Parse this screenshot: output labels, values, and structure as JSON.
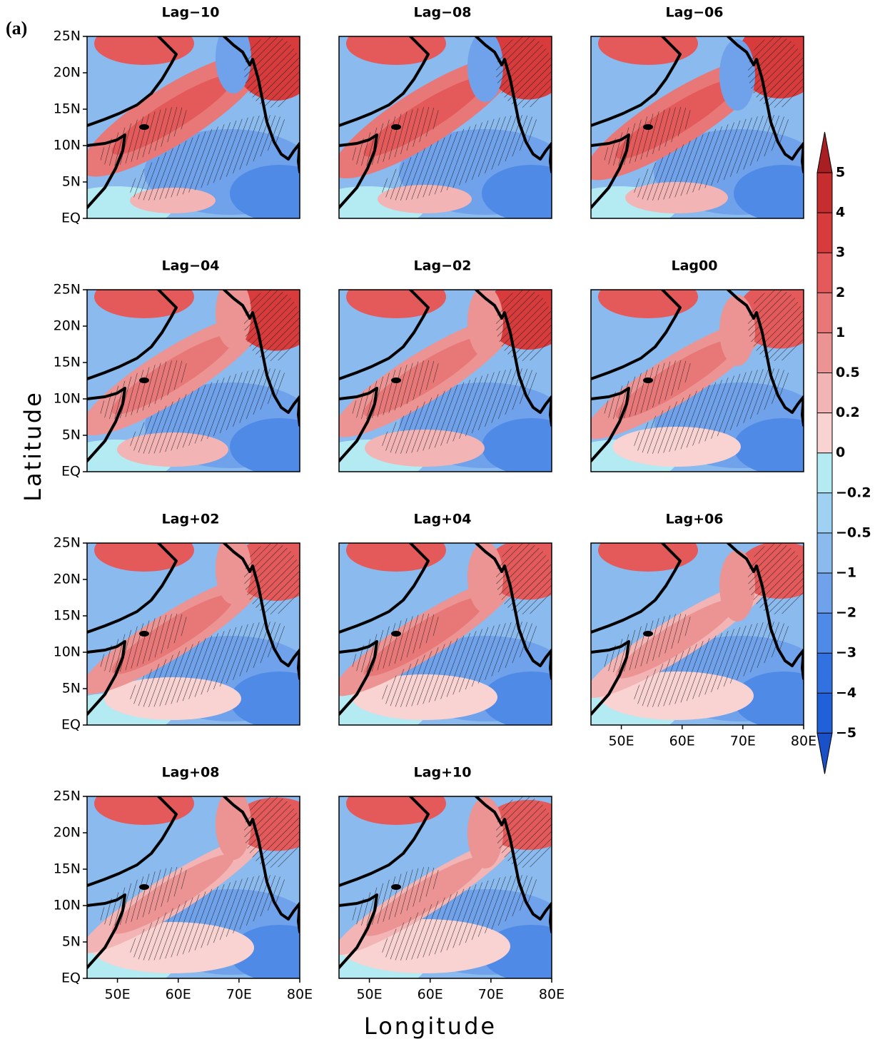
{
  "figure_label": "(a)",
  "panels": [
    {
      "title": "Lag−10"
    },
    {
      "title": "Lag−08"
    },
    {
      "title": "Lag−06"
    },
    {
      "title": "Lag−04"
    },
    {
      "title": "Lag−02"
    },
    {
      "title": "Lag00"
    },
    {
      "title": "Lag+02"
    },
    {
      "title": "Lag+04"
    },
    {
      "title": "Lag+06"
    },
    {
      "title": "Lag+08"
    },
    {
      "title": "Lag+10"
    }
  ],
  "lat_labels": [
    "25N",
    "20N",
    "15N",
    "10N",
    "5N",
    "EQ"
  ],
  "lon_labels": [
    "50E",
    "60E",
    "70E",
    "80E"
  ],
  "y_axis_title": "Latitude",
  "x_axis_title": "Longitude",
  "colorbar": {
    "labels": [
      "5",
      "4",
      "3",
      "2",
      "1",
      "0.5",
      "0.2",
      "0",
      "−0.2",
      "−0.5",
      "−1",
      "−2",
      "−3",
      "−4",
      "−5"
    ],
    "colors": [
      "#a81e22",
      "#c52d2f",
      "#d73b3b",
      "#e45a5a",
      "#e87878",
      "#ec9494",
      "#f2b4b4",
      "#f9d2d2",
      "#b4eaf2",
      "#9fd2f2",
      "#8abaee",
      "#6fa2ea",
      "#4f8ae6",
      "#3272e0",
      "#2060d8",
      "#1a50c8"
    ]
  }
}
